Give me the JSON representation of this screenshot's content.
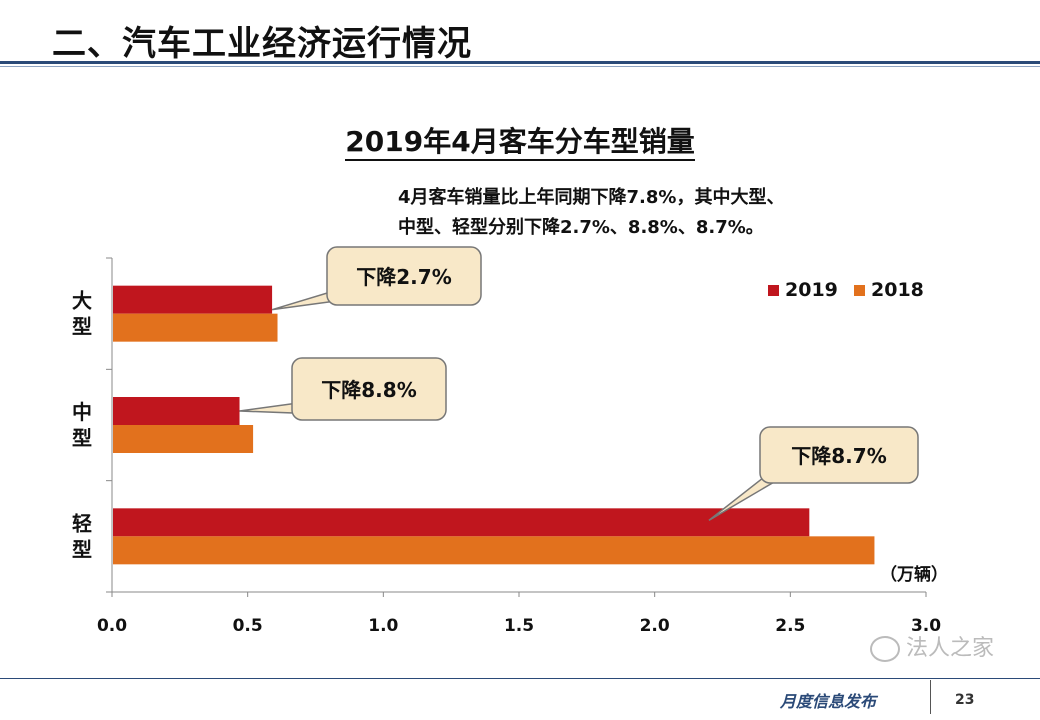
{
  "slide": {
    "title": "二、汽车工业经济运行情况",
    "note_line1": "4月客车销量比上年同期下降7.8%，其中大型、",
    "note_line2": "中型、轻型分别下降2.7%、8.8%、8.7%。",
    "footer_text": "月度信息发布",
    "page_number": "23",
    "watermark": "法人之家"
  },
  "chart_data": {
    "type": "bar",
    "orientation": "horizontal",
    "title": "2019年4月客车分车型销量",
    "unit_label": "（万辆）",
    "categories": [
      "大型",
      "中型",
      "轻型"
    ],
    "series": [
      {
        "name": "2019",
        "values": [
          0.59,
          0.47,
          2.57
        ],
        "color": "#c0161e"
      },
      {
        "name": "2018",
        "values": [
          0.61,
          0.52,
          2.81
        ],
        "color": "#e2711d"
      }
    ],
    "xlim": [
      0,
      3.0
    ],
    "x_ticks": [
      "0.0",
      "0.5",
      "1.0",
      "1.5",
      "2.0",
      "2.5",
      "3.0"
    ],
    "legend_position": "top-right",
    "grid": false,
    "annotations": [
      {
        "text": "下降2.7%",
        "category": "大型"
      },
      {
        "text": "下降8.8%",
        "category": "中型"
      },
      {
        "text": "下降8.7%",
        "category": "轻型"
      }
    ]
  }
}
